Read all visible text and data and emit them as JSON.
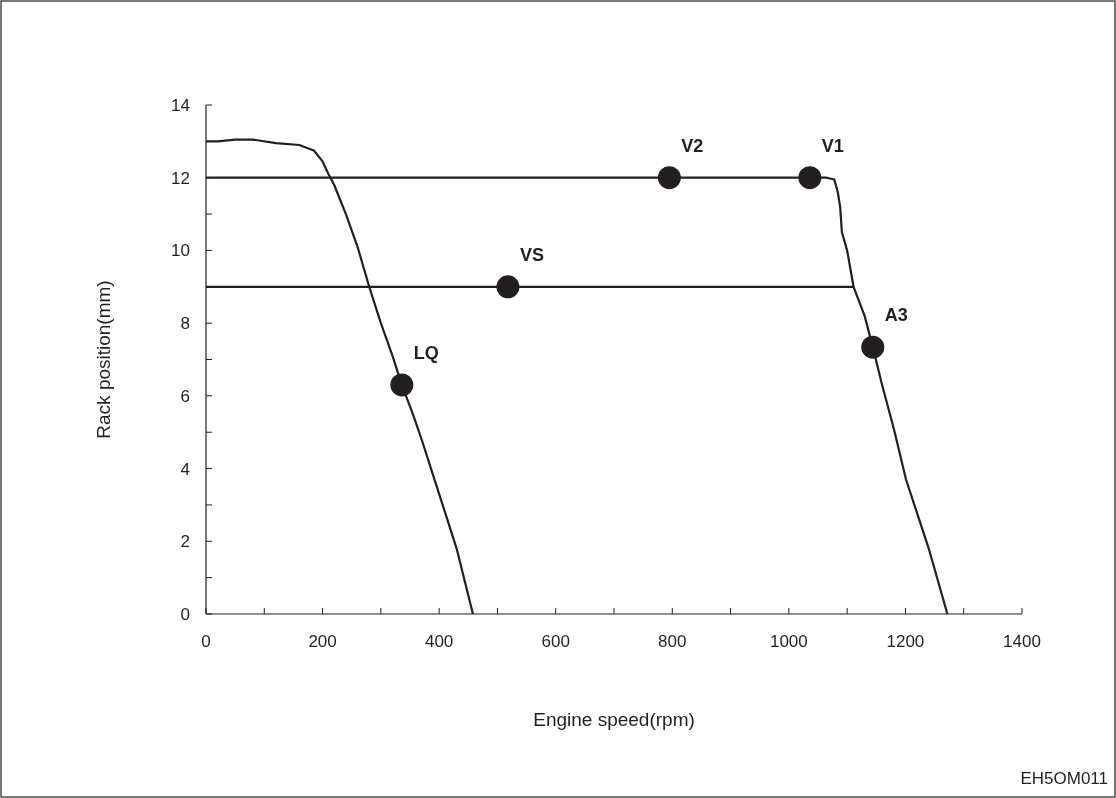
{
  "chart_data": {
    "type": "line",
    "xlabel": "Engine speed(rpm)",
    "ylabel": "Rack position(mm)",
    "xlim": [
      0,
      1400
    ],
    "ylim": [
      0,
      14
    ],
    "xticks": [
      0,
      {
        "value": 100,
        "label": null
      },
      200,
      {
        "value": 300,
        "label": null
      },
      400,
      {
        "value": 500,
        "label": null
      },
      600,
      {
        "value": 700,
        "label": null
      },
      800,
      {
        "value": 900,
        "label": null
      },
      1000,
      {
        "value": 1100,
        "label": null
      },
      1200,
      {
        "value": 1300,
        "label": null
      },
      1400
    ],
    "yticks": [
      0,
      {
        "value": 1,
        "label": null
      },
      2,
      {
        "value": 3,
        "label": null
      },
      4,
      {
        "value": 5,
        "label": null
      },
      6,
      {
        "value": 7,
        "label": null
      },
      8,
      {
        "value": 9,
        "label": null
      },
      10,
      {
        "value": 11,
        "label": null
      },
      12,
      {
        "value": 13,
        "label": null
      },
      14
    ],
    "grid": false,
    "marker": "none",
    "line_style": "solid",
    "series": [
      {
        "color": "#231f20",
        "x": [
          0,
          20,
          50,
          80,
          120,
          160,
          185,
          200,
          210,
          220,
          240,
          260,
          280,
          300,
          320,
          336,
          355,
          370,
          390,
          410,
          430,
          458
        ],
        "values": [
          13,
          13,
          13.05,
          13.05,
          12.95,
          12.9,
          12.75,
          12.45,
          12.1,
          11.8,
          11.0,
          10.1,
          9.0,
          8.0,
          7.1,
          6.3,
          5.5,
          4.8,
          3.8,
          2.8,
          1.8,
          0
        ]
      },
      {
        "color": "#231f20",
        "x": [
          0,
          1036,
          1065,
          1078,
          1084,
          1088,
          1091,
          1100,
          1111,
          1130,
          1144,
          1160,
          1180,
          1201,
          1240,
          1272
        ],
        "values": [
          12,
          12,
          12,
          11.95,
          11.6,
          11.2,
          10.5,
          10.0,
          9.0,
          8.2,
          7.34,
          6.3,
          5.1,
          3.7,
          1.8,
          0
        ]
      },
      {
        "color": "#231f20",
        "x": [
          0,
          1111
        ],
        "values": [
          9,
          9
        ]
      },
      {
        "type": "scatter",
        "marker": "circle",
        "color": "#231f20",
        "x": [
          795,
          1036,
          518,
          336,
          1144
        ],
        "values": [
          12,
          12,
          9,
          6.3,
          7.34
        ]
      }
    ],
    "annotations": [
      {
        "text": "V2",
        "x": 795,
        "y": 12
      },
      {
        "text": "V1",
        "x": 1036,
        "y": 12
      },
      {
        "text": "VS",
        "x": 518,
        "y": 9
      },
      {
        "text": "LQ",
        "x": 336,
        "y": 6.3
      },
      {
        "text": "A3",
        "x": 1144,
        "y": 7.34
      },
      "EH5OM011"
    ]
  }
}
